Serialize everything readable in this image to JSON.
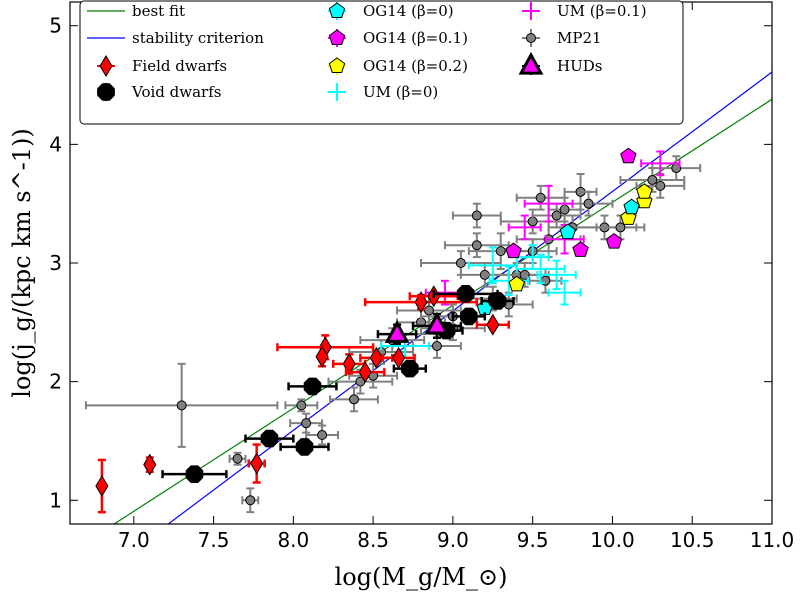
{
  "chart_data": {
    "type": "scatter",
    "title": "",
    "xlabel": "log(M_g/M_⊙)",
    "ylabel": "log(j_g/(kpc km s^-1))",
    "xlim": [
      6.6,
      11.0
    ],
    "ylim": [
      0.8,
      5.2
    ],
    "x_ticks": [
      "7.0",
      "7.5",
      "8.0",
      "8.5",
      "9.0",
      "9.5",
      "10.0",
      "10.5",
      "11.0"
    ],
    "y_ticks": [
      "1",
      "2",
      "3",
      "4",
      "5"
    ],
    "fit_lines": [
      {
        "name": "best fit",
        "color": "#008000",
        "x": [
          6.6,
          11.0
        ],
        "y": [
          0.56,
          4.38
        ]
      },
      {
        "name": "stability criterion",
        "color": "#0000ff",
        "x": [
          6.6,
          11.0
        ],
        "y": [
          0.18,
          4.61
        ]
      }
    ],
    "series": [
      {
        "name": "Field dwarfs",
        "marker": "diamond",
        "color": "#ff0000",
        "err_color": "#ff0000",
        "points": [
          {
            "x": 6.8,
            "y": 1.12,
            "yerr": 0.22
          },
          {
            "x": 7.1,
            "y": 1.3,
            "yerr": 0.06
          },
          {
            "x": 7.77,
            "y": 1.31,
            "xerr": 0.05,
            "yerr": 0.16
          },
          {
            "x": 8.2,
            "y": 2.29,
            "xerr": 0.3,
            "yerr": 0.1
          },
          {
            "x": 8.18,
            "y": 2.21,
            "yerr": 0.08
          },
          {
            "x": 8.35,
            "y": 2.15,
            "xerr": 0.1,
            "yerr": 0.08
          },
          {
            "x": 8.45,
            "y": 2.08,
            "xerr": 0.12
          },
          {
            "x": 8.52,
            "y": 2.2,
            "xerr": 0.1
          },
          {
            "x": 8.66,
            "y": 2.2,
            "xerr": 0.1
          },
          {
            "x": 8.8,
            "y": 2.67,
            "xerr": 0.35,
            "yerr": 0.06
          },
          {
            "x": 8.88,
            "y": 2.72,
            "xerr": 0.15
          },
          {
            "x": 9.25,
            "y": 2.48,
            "xerr": 0.1
          }
        ]
      },
      {
        "name": "Void dwarfs",
        "marker": "octagon",
        "color": "#000000",
        "err_color": "#000000",
        "points": [
          {
            "x": 7.38,
            "y": 1.22,
            "xerr": 0.2
          },
          {
            "x": 7.85,
            "y": 1.52,
            "xerr": 0.15
          },
          {
            "x": 8.07,
            "y": 1.45,
            "xerr": 0.15
          },
          {
            "x": 8.12,
            "y": 1.96,
            "xerr": 0.15
          },
          {
            "x": 8.73,
            "y": 2.11,
            "xerr": 0.1
          },
          {
            "x": 8.96,
            "y": 2.43,
            "xerr": 0.1
          },
          {
            "x": 9.08,
            "y": 2.74,
            "xerr": 0.2
          },
          {
            "x": 9.1,
            "y": 2.55,
            "xerr": 0.1
          },
          {
            "x": 9.28,
            "y": 2.68,
            "xerr": 0.1
          }
        ]
      },
      {
        "name": "OG14 (β=0)",
        "marker": "pentagon",
        "color": "#00ffff",
        "err_color": "#00ffff",
        "points": [
          {
            "x": 9.2,
            "y": 2.62
          },
          {
            "x": 9.72,
            "y": 3.26
          },
          {
            "x": 10.12,
            "y": 3.47
          }
        ]
      },
      {
        "name": "OG14 (β=0.1)",
        "marker": "pentagon",
        "color": "#ff00ff",
        "err_color": "#ff00ff",
        "points": [
          {
            "x": 9.38,
            "y": 3.1
          },
          {
            "x": 9.8,
            "y": 3.11
          },
          {
            "x": 10.01,
            "y": 3.18
          },
          {
            "x": 10.1,
            "y": 3.9
          }
        ]
      },
      {
        "name": "OG14 (β=0.2)",
        "marker": "pentagon",
        "color": "#ffff00",
        "err_color": "#ffff00",
        "points": [
          {
            "x": 9.4,
            "y": 2.82
          },
          {
            "x": 10.1,
            "y": 3.38
          },
          {
            "x": 10.2,
            "y": 3.52
          },
          {
            "x": 10.2,
            "y": 3.6
          }
        ]
      },
      {
        "name": "UM (β=0)",
        "marker": "none",
        "color": "#00ffff",
        "err_color": "#00ffff",
        "points": [
          {
            "x": 9.25,
            "y": 2.98,
            "xerr": 0.15,
            "yerr": 0.15
          },
          {
            "x": 9.35,
            "y": 2.85,
            "xerr": 0.12,
            "yerr": 0.12
          },
          {
            "x": 9.55,
            "y": 2.95,
            "xerr": 0.15,
            "yerr": 0.12
          },
          {
            "x": 9.65,
            "y": 2.9,
            "xerr": 0.12,
            "yerr": 0.12
          },
          {
            "x": 9.7,
            "y": 2.75,
            "xerr": 0.1,
            "yerr": 0.1
          },
          {
            "x": 9.5,
            "y": 3.05,
            "xerr": 0.1,
            "yerr": 0.1
          },
          {
            "x": 8.7,
            "y": 2.3,
            "xerr": 0.15,
            "yerr": 0.1
          }
        ]
      },
      {
        "name": "UM (β=0.1)",
        "marker": "none",
        "color": "#ff00ff",
        "err_color": "#ff00ff",
        "points": [
          {
            "x": 10.3,
            "y": 3.84,
            "xerr": 0.12,
            "yerr": 0.1
          },
          {
            "x": 9.6,
            "y": 3.5,
            "xerr": 0.15,
            "yerr": 0.15
          },
          {
            "x": 9.7,
            "y": 3.2,
            "xerr": 0.12,
            "yerr": 0.12
          },
          {
            "x": 9.45,
            "y": 3.3,
            "xerr": 0.1,
            "yerr": 0.1
          },
          {
            "x": 8.95,
            "y": 2.75,
            "xerr": 0.12,
            "yerr": 0.1
          }
        ]
      },
      {
        "name": "MP21",
        "marker": "circle",
        "color": "#808080",
        "err_color": "#808080",
        "points": [
          {
            "x": 7.3,
            "y": 1.8,
            "xerr": 0.6,
            "yerr": 0.35
          },
          {
            "x": 7.65,
            "y": 1.35,
            "xerr": 0.05,
            "yerr": 0.05
          },
          {
            "x": 7.73,
            "y": 1.0,
            "xerr": 0.05,
            "yerr": 0.1
          },
          {
            "x": 8.08,
            "y": 1.65,
            "xerr": 0.1,
            "yerr": 0.08
          },
          {
            "x": 8.18,
            "y": 1.55,
            "xerr": 0.1,
            "yerr": 0.08
          },
          {
            "x": 8.38,
            "y": 1.85,
            "xerr": 0.15,
            "yerr": 0.1
          },
          {
            "x": 8.05,
            "y": 1.8,
            "xerr": 0.1,
            "yerr": 0.05
          },
          {
            "x": 8.42,
            "y": 2.0,
            "xerr": 0.2,
            "yerr": 0.1
          },
          {
            "x": 8.5,
            "y": 2.05,
            "xerr": 0.15,
            "yerr": 0.1
          },
          {
            "x": 8.55,
            "y": 2.25,
            "xerr": 0.2,
            "yerr": 0.1
          },
          {
            "x": 8.62,
            "y": 2.35,
            "xerr": 0.2,
            "yerr": 0.1
          },
          {
            "x": 8.8,
            "y": 2.5,
            "xerr": 0.15,
            "yerr": 0.1
          },
          {
            "x": 8.85,
            "y": 2.6,
            "xerr": 0.2,
            "yerr": 0.15
          },
          {
            "x": 8.9,
            "y": 2.3,
            "xerr": 0.15,
            "yerr": 0.1
          },
          {
            "x": 9.0,
            "y": 2.45,
            "xerr": 0.2,
            "yerr": 0.1
          },
          {
            "x": 9.05,
            "y": 3.0,
            "xerr": 0.25,
            "yerr": 0.1
          },
          {
            "x": 9.15,
            "y": 3.15,
            "xerr": 0.2,
            "yerr": 0.1
          },
          {
            "x": 9.15,
            "y": 3.4,
            "xerr": 0.15,
            "yerr": 0.1
          },
          {
            "x": 9.2,
            "y": 2.9,
            "xerr": 0.15,
            "yerr": 0.1
          },
          {
            "x": 9.25,
            "y": 2.7,
            "xerr": 0.15,
            "yerr": 0.1
          },
          {
            "x": 9.3,
            "y": 3.1,
            "xerr": 0.2,
            "yerr": 0.15
          },
          {
            "x": 9.35,
            "y": 2.65,
            "xerr": 0.15,
            "yerr": 0.1
          },
          {
            "x": 9.4,
            "y": 2.9,
            "xerr": 0.2,
            "yerr": 0.1
          },
          {
            "x": 9.45,
            "y": 2.9,
            "xerr": 0.1,
            "yerr": 0.1
          },
          {
            "x": 9.5,
            "y": 3.35,
            "xerr": 0.2,
            "yerr": 0.1
          },
          {
            "x": 9.55,
            "y": 3.55,
            "xerr": 0.15,
            "yerr": 0.1
          },
          {
            "x": 9.6,
            "y": 3.2,
            "xerr": 0.2,
            "yerr": 0.15
          },
          {
            "x": 9.65,
            "y": 3.4,
            "xerr": 0.15,
            "yerr": 0.1
          },
          {
            "x": 9.7,
            "y": 3.45,
            "xerr": 0.1,
            "yerr": 0.1
          },
          {
            "x": 9.75,
            "y": 3.3,
            "xerr": 0.15,
            "yerr": 0.1
          },
          {
            "x": 9.8,
            "y": 3.6,
            "xerr": 0.1,
            "yerr": 0.15
          },
          {
            "x": 9.85,
            "y": 3.5,
            "xerr": 0.15,
            "yerr": 0.1
          },
          {
            "x": 9.95,
            "y": 3.3,
            "xerr": 0.2,
            "yerr": 0.1
          },
          {
            "x": 10.05,
            "y": 3.3,
            "xerr": 0.15,
            "yerr": 0.1
          },
          {
            "x": 10.25,
            "y": 3.7,
            "xerr": 0.2,
            "yerr": 0.1
          },
          {
            "x": 10.3,
            "y": 3.65,
            "xerr": 0.15,
            "yerr": 0.1
          },
          {
            "x": 10.4,
            "y": 3.8,
            "xerr": 0.15,
            "yerr": 0.1
          },
          {
            "x": 9.5,
            "y": 3.1,
            "xerr": 0.15,
            "yerr": 0.1
          },
          {
            "x": 9.58,
            "y": 2.85,
            "xerr": 0.1,
            "yerr": 0.1
          },
          {
            "x": 9.0,
            "y": 2.55,
            "xerr": 0.2,
            "yerr": 0.1
          }
        ]
      },
      {
        "name": "HUDs",
        "marker": "triangle",
        "color": "#ff00ff",
        "err_color": "#000000",
        "points": [
          {
            "x": 8.65,
            "y": 2.4,
            "xerr": 0.12,
            "yerr": 0.08
          },
          {
            "x": 8.9,
            "y": 2.47,
            "xerr": 0.15,
            "yerr": 0.1
          }
        ]
      }
    ],
    "legend": {
      "position": "top-left",
      "col1": [
        "best fit",
        "stability criterion",
        "Field dwarfs",
        "Void dwarfs"
      ],
      "col2": [
        "OG14 (β=0)",
        "OG14 (β=0.1)",
        "OG14 (β=0.2)",
        "UM (β=0)"
      ],
      "col3": [
        "UM (β=0.1)",
        "MP21",
        "HUDs"
      ]
    }
  }
}
